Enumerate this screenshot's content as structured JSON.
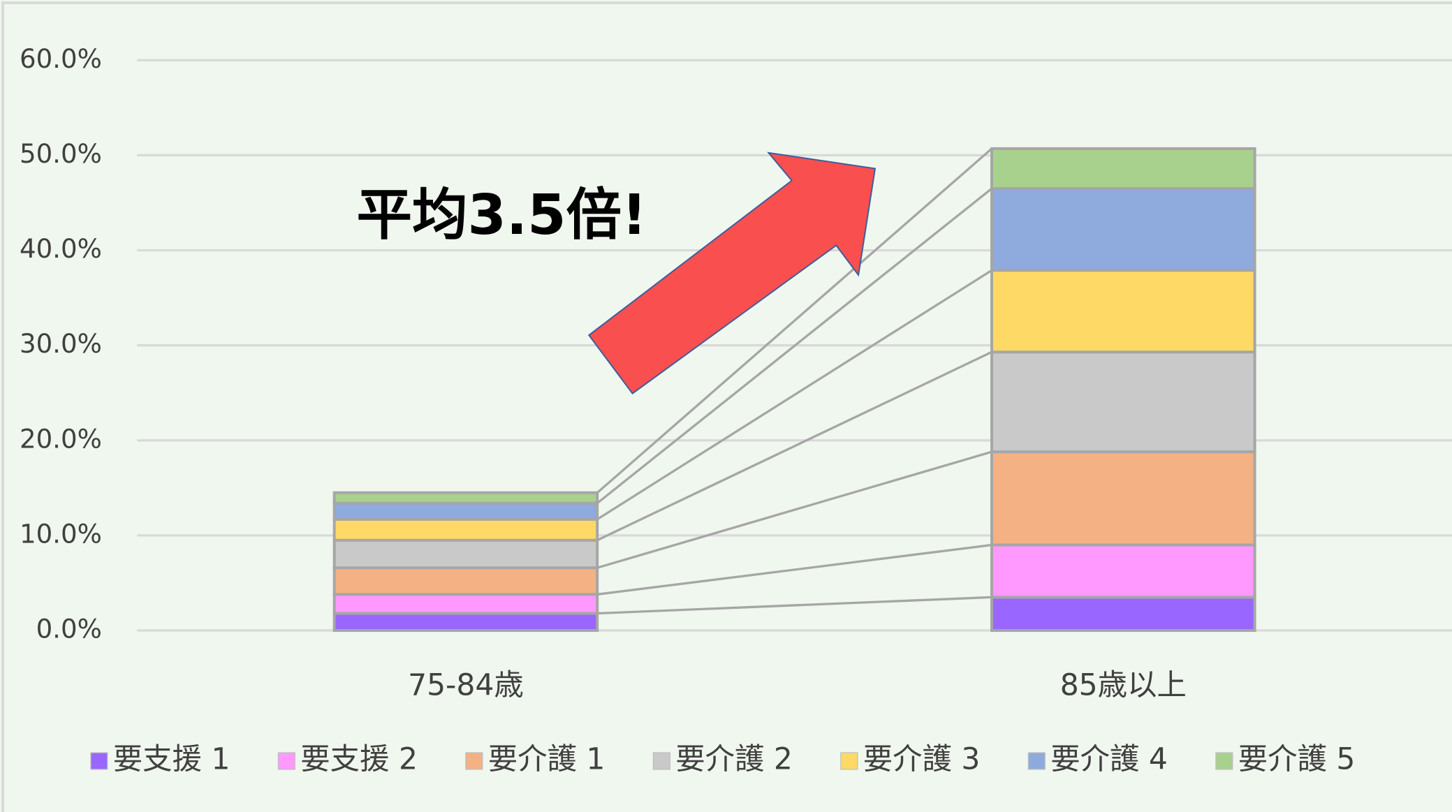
{
  "chart_data": {
    "type": "stacked_bar",
    "annotation": "平均3.5倍!",
    "categories": [
      "75-84歳",
      "85歳以上"
    ],
    "series": [
      {
        "name": "要支援 1",
        "color": "#9966ff",
        "values": [
          1.8,
          3.5
        ]
      },
      {
        "name": "要支援 2",
        "color": "#ff99ff",
        "values": [
          2.0,
          5.5
        ]
      },
      {
        "name": "要介護 1",
        "color": "#f4b183",
        "values": [
          2.8,
          9.8
        ]
      },
      {
        "name": "要介護 2",
        "color": "#c9c9c9",
        "values": [
          2.9,
          10.5
        ]
      },
      {
        "name": "要介護 3",
        "color": "#ffd966",
        "values": [
          2.2,
          8.6
        ]
      },
      {
        "name": "要介護 4",
        "color": "#8faadc",
        "values": [
          1.7,
          8.6
        ]
      },
      {
        "name": "要介護 5",
        "color": "#a9d18e",
        "values": [
          1.1,
          4.2
        ]
      }
    ],
    "ylim": [
      0,
      60
    ],
    "yticks": [
      {
        "value": 0,
        "label": "0.0%"
      },
      {
        "value": 10,
        "label": "10.0%"
      },
      {
        "value": 20,
        "label": "20.0%"
      },
      {
        "value": 30,
        "label": "30.0%"
      },
      {
        "value": 40,
        "label": "40.0%"
      },
      {
        "value": 50,
        "label": "50.0%"
      },
      {
        "value": 60,
        "label": "60.0%"
      }
    ],
    "grid": true,
    "legend": "bottom"
  }
}
